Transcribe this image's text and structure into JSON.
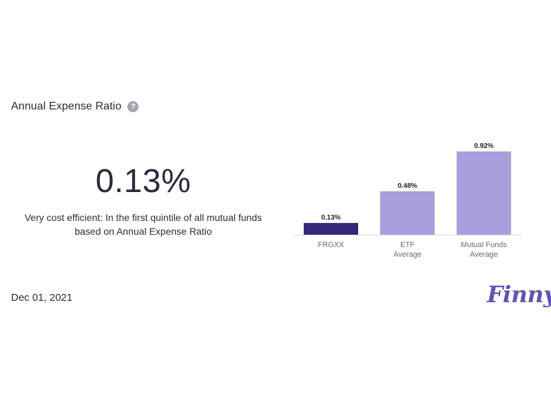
{
  "header": {
    "title": "Annual Expense Ratio",
    "help_icon": "question-circle-icon",
    "help_glyph": "?"
  },
  "stat": {
    "value": "0.13%",
    "description": "Very cost efficient: In the first quintile of all mutual funds based on Annual Expense Ratio"
  },
  "footer": {
    "date": "Dec 01, 2021",
    "logo": "Finny"
  },
  "colors": {
    "primary_bar": "#33287a",
    "average_bar": "#a8a0de",
    "baseline": "#e3e3e8",
    "logo": "#6452b6"
  },
  "chart_data": {
    "type": "bar",
    "categories": [
      [
        "FRGXX"
      ],
      [
        "ETF",
        "Average"
      ],
      [
        "Mutual Funds",
        "Average"
      ]
    ],
    "values": [
      0.13,
      0.48,
      0.92
    ],
    "value_labels": [
      "0.13%",
      "0.48%",
      "0.92%"
    ],
    "ylim": [
      0,
      0.92
    ],
    "grid": false,
    "legend": "none"
  }
}
